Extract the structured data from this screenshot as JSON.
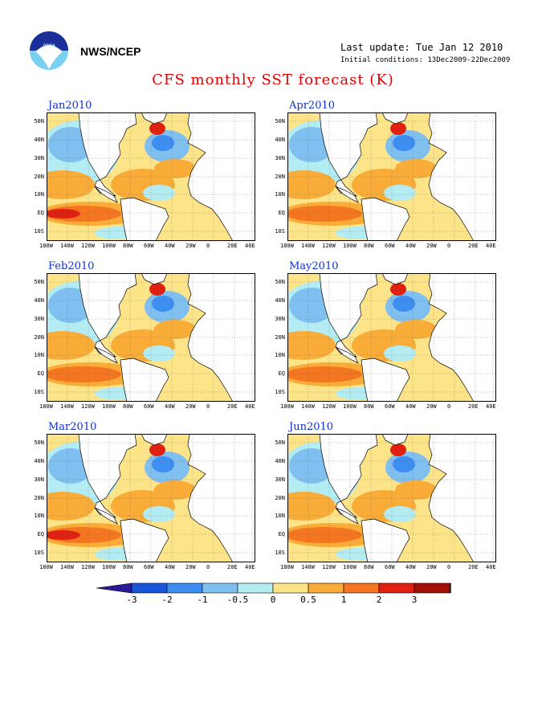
{
  "header": {
    "org": "NWS/NCEP",
    "last_update": "Last update: Tue Jan 12 2010",
    "initial_conditions": "Initial conditions: 13Dec2009-22Dec2009",
    "title": "CFS monthly SST forecast (K)"
  },
  "panels": [
    {
      "month": "Jan2010"
    },
    {
      "month": "Apr2010"
    },
    {
      "month": "Feb2010"
    },
    {
      "month": "May2010"
    },
    {
      "month": "Mar2010"
    },
    {
      "month": "Jun2010"
    }
  ],
  "axes": {
    "lat_labels": [
      "50N",
      "40N",
      "30N",
      "20N",
      "10N",
      "EQ",
      "10S"
    ],
    "lon_labels": [
      "180W",
      "140W",
      "120W",
      "100W",
      "80W",
      "60W",
      "40W",
      "20W",
      "0",
      "20E",
      "40E"
    ]
  },
  "colorbar": {
    "labels": [
      "-3",
      "-2",
      "-1",
      "-0.5",
      "0",
      "0.5",
      "1",
      "2",
      "3"
    ],
    "colors": [
      "#2a1a9a",
      "#1a56d8",
      "#3d8ef0",
      "#80c0f0",
      "#b4ecf4",
      "#fde488",
      "#f9ac38",
      "#f47620",
      "#e02010",
      "#a01008",
      "#6e4030"
    ]
  }
}
